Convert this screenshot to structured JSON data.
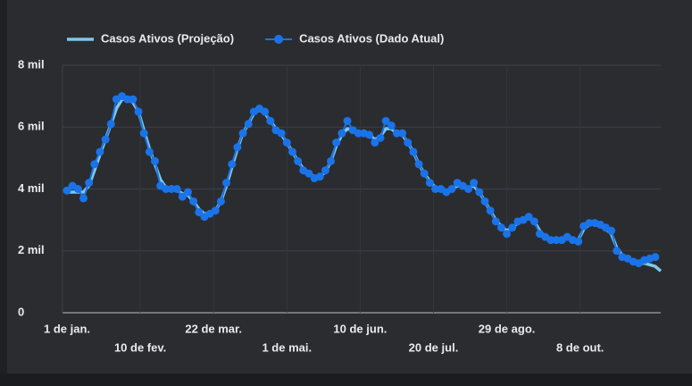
{
  "chart_data": {
    "type": "line",
    "x": [
      0,
      3,
      6,
      9,
      12,
      15,
      18,
      21,
      24,
      27,
      30,
      33,
      36,
      39,
      42,
      45,
      48,
      51,
      54,
      57,
      60,
      63,
      66,
      69,
      72,
      75,
      78,
      81,
      84,
      87,
      90,
      93,
      96,
      99,
      102,
      105,
      108,
      111,
      114,
      117,
      120,
      123,
      126,
      129,
      132,
      135,
      138,
      141,
      144,
      147,
      150,
      153,
      156,
      159,
      162,
      165,
      168,
      171,
      174,
      177,
      180,
      183,
      186,
      189,
      192,
      195,
      198,
      201,
      204,
      207,
      210,
      213,
      216,
      219,
      222,
      225,
      228,
      231,
      234,
      237,
      240,
      243,
      246,
      249,
      252,
      255,
      258,
      261,
      264,
      267,
      270,
      273,
      276,
      279,
      282,
      285,
      288,
      291,
      294,
      297,
      300,
      303,
      306,
      309,
      312,
      315,
      318,
      321,
      324
    ],
    "series": [
      {
        "name": "Casos Ativos (Projeção)",
        "color": "#7ec8ea",
        "marker": false,
        "values": [
          3900,
          3900,
          3900,
          3900,
          4100,
          4600,
          5100,
          5600,
          6100,
          6600,
          6900,
          6900,
          6800,
          6500,
          5900,
          5300,
          4800,
          4300,
          4050,
          4000,
          3950,
          3850,
          3800,
          3600,
          3350,
          3200,
          3200,
          3300,
          3600,
          4100,
          4700,
          5300,
          5800,
          6100,
          6450,
          6550,
          6450,
          6200,
          5950,
          5750,
          5500,
          5200,
          4900,
          4650,
          4500,
          4400,
          4400,
          4550,
          4900,
          5400,
          5750,
          5950,
          5900,
          5800,
          5800,
          5750,
          5600,
          5700,
          5950,
          5950,
          5800,
          5750,
          5500,
          5200,
          4800,
          4500,
          4250,
          4050,
          4000,
          3950,
          4000,
          4100,
          4100,
          4050,
          4100,
          3900,
          3600,
          3300,
          3000,
          2800,
          2650,
          2750,
          2900,
          3000,
          3050,
          2950,
          2650,
          2450,
          2400,
          2350,
          2350,
          2400,
          2350,
          2350,
          2700,
          2850,
          2850,
          2800,
          2700,
          2550,
          2100,
          1850,
          1750,
          1650,
          1600,
          1600,
          1550,
          1500,
          1350
        ]
      },
      {
        "name": "Casos Ativos (Dado Atual)",
        "color": "#1a73e8",
        "marker": true,
        "values": [
          3950,
          4100,
          4000,
          3700,
          4200,
          4800,
          5200,
          5600,
          6100,
          6900,
          7000,
          6900,
          6900,
          6500,
          5800,
          5200,
          4900,
          4100,
          4000,
          4000,
          4000,
          3750,
          3900,
          3600,
          3250,
          3100,
          3200,
          3300,
          3600,
          4200,
          4800,
          5350,
          5800,
          6100,
          6500,
          6600,
          6500,
          6200,
          5900,
          5800,
          5500,
          5200,
          4900,
          4600,
          4500,
          4350,
          4400,
          4600,
          4900,
          5500,
          5800,
          6200,
          5900,
          5800,
          5800,
          5750,
          5500,
          5650,
          6200,
          6050,
          5800,
          5800,
          5500,
          5200,
          4800,
          4500,
          4200,
          4000,
          4000,
          3900,
          4000,
          4200,
          4100,
          4000,
          4200,
          3900,
          3600,
          3300,
          2950,
          2750,
          2550,
          2750,
          2950,
          3000,
          3100,
          2950,
          2550,
          2450,
          2350,
          2350,
          2350,
          2450,
          2350,
          2300,
          2800,
          2900,
          2900,
          2850,
          2750,
          2650,
          2000,
          1800,
          1750,
          1650,
          1600,
          1700,
          1750,
          1800,
          null
        ]
      }
    ],
    "xlim": [
      0,
      324
    ],
    "xticks": [
      {
        "value": 0,
        "label": "1 de jan."
      },
      {
        "value": 40,
        "label": "10 de fev."
      },
      {
        "value": 80,
        "label": "22 de mar."
      },
      {
        "value": 120,
        "label": "1 de mai."
      },
      {
        "value": 160,
        "label": "10 de jun."
      },
      {
        "value": 200,
        "label": "20 de jul."
      },
      {
        "value": 240,
        "label": "29 de ago."
      },
      {
        "value": 280,
        "label": "8 de out."
      }
    ],
    "ylim": [
      0,
      8000
    ],
    "yticks": [
      0,
      {
        "value": 2000,
        "label": "2 mil"
      },
      {
        "value": 4000,
        "label": "4 mil"
      },
      {
        "value": 6000,
        "label": "6 mil"
      },
      {
        "value": 8000,
        "label": "8 mil"
      }
    ],
    "grid": true,
    "legend": "top"
  }
}
